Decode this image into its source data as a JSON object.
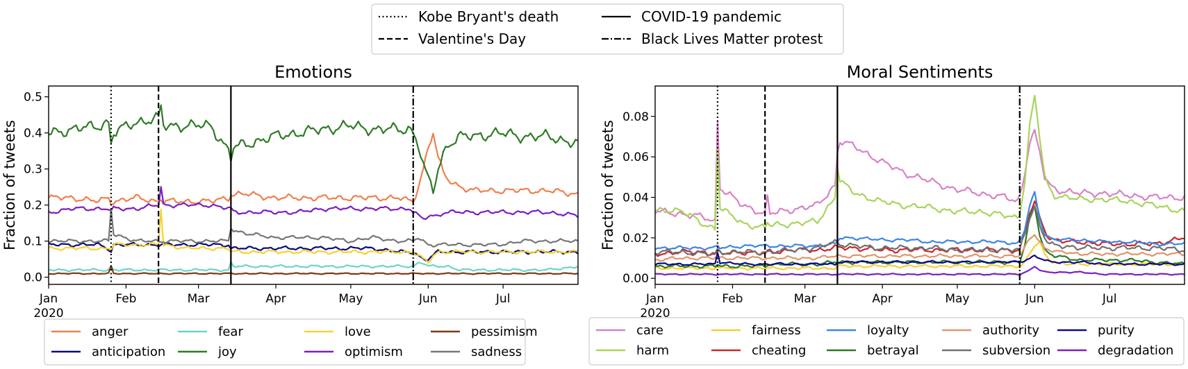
{
  "event_legend": [
    {
      "label": "Kobe Bryant's death",
      "dash": "dotted"
    },
    {
      "label": "COVID-19 pandemic",
      "dash": "solid"
    },
    {
      "label": "Valentine's Day",
      "dash": "dashed"
    },
    {
      "label": "Black Lives Matter protest",
      "dash": "dashdot"
    }
  ],
  "chart_data": [
    {
      "type": "line",
      "title": "Emotions",
      "xlabel": "",
      "ylabel": "Fraction of tweets",
      "xlim": [
        0,
        212
      ],
      "ylim": [
        -0.02,
        0.53
      ],
      "yticks": [
        {
          "value": 0.0,
          "label": "0.0"
        },
        {
          "value": 0.1,
          "label": "0.1"
        },
        {
          "value": 0.2,
          "label": "0.2"
        },
        {
          "value": 0.3,
          "label": "0.3"
        },
        {
          "value": 0.4,
          "label": "0.4"
        },
        {
          "value": 0.5,
          "label": "0.5"
        }
      ],
      "xticks": [
        {
          "day": 0,
          "label": "Jan",
          "sublabel": "2020"
        },
        {
          "day": 31,
          "label": "Feb"
        },
        {
          "day": 60,
          "label": "Mar"
        },
        {
          "day": 91,
          "label": "Apr"
        },
        {
          "day": 121,
          "label": "May"
        },
        {
          "day": 152,
          "label": "Jun"
        },
        {
          "day": 182,
          "label": "Jul"
        }
      ],
      "events": [
        {
          "day": 25,
          "dash": "dotted"
        },
        {
          "day": 44,
          "dash": "dashed"
        },
        {
          "day": 73,
          "dash": "solid"
        },
        {
          "day": 146,
          "dash": "dashdot"
        }
      ],
      "x_unit": "days since 2020-01-01",
      "keypoint_days": [
        0,
        10,
        20,
        24,
        25,
        26,
        35,
        44,
        45,
        46,
        55,
        65,
        72,
        73,
        74,
        80,
        90,
        100,
        110,
        120,
        130,
        140,
        145,
        146,
        148,
        150,
        152,
        154,
        156,
        158,
        160,
        165,
        170,
        180,
        190,
        200,
        212
      ],
      "legend_cols": 4,
      "series": [
        {
          "name": "anger",
          "color": "#f07f4d",
          "amp": 0.01,
          "values": [
            0.22,
            0.22,
            0.21,
            0.22,
            0.21,
            0.21,
            0.22,
            0.21,
            0.22,
            0.21,
            0.21,
            0.21,
            0.22,
            0.23,
            0.23,
            0.23,
            0.22,
            0.22,
            0.22,
            0.22,
            0.22,
            0.22,
            0.21,
            0.21,
            0.25,
            0.3,
            0.36,
            0.4,
            0.33,
            0.29,
            0.27,
            0.25,
            0.24,
            0.24,
            0.24,
            0.24,
            0.23
          ]
        },
        {
          "name": "anticipation",
          "color": "#0a0a7a",
          "amp": 0.006,
          "values": [
            0.09,
            0.09,
            0.09,
            0.08,
            0.07,
            0.09,
            0.09,
            0.09,
            0.09,
            0.09,
            0.09,
            0.09,
            0.09,
            0.08,
            0.08,
            0.08,
            0.08,
            0.08,
            0.08,
            0.08,
            0.08,
            0.07,
            0.07,
            0.07,
            0.06,
            0.05,
            0.05,
            0.06,
            0.07,
            0.07,
            0.07,
            0.07,
            0.07,
            0.07,
            0.07,
            0.07,
            0.07
          ]
        },
        {
          "name": "fear",
          "color": "#6cd4cb",
          "amp": 0.004,
          "values": [
            0.02,
            0.02,
            0.02,
            0.02,
            0.03,
            0.02,
            0.02,
            0.02,
            0.02,
            0.02,
            0.02,
            0.02,
            0.02,
            0.04,
            0.03,
            0.03,
            0.03,
            0.03,
            0.03,
            0.03,
            0.03,
            0.03,
            0.03,
            0.03,
            0.04,
            0.04,
            0.03,
            0.03,
            0.03,
            0.03,
            0.03,
            0.02,
            0.02,
            0.02,
            0.02,
            0.02,
            0.03
          ]
        },
        {
          "name": "joy",
          "color": "#2f7a25",
          "amp": 0.018,
          "values": [
            0.4,
            0.41,
            0.42,
            0.43,
            0.37,
            0.4,
            0.43,
            0.44,
            0.47,
            0.42,
            0.42,
            0.42,
            0.35,
            0.33,
            0.36,
            0.37,
            0.39,
            0.4,
            0.41,
            0.42,
            0.41,
            0.41,
            0.41,
            0.4,
            0.37,
            0.31,
            0.27,
            0.24,
            0.3,
            0.34,
            0.37,
            0.39,
            0.39,
            0.4,
            0.39,
            0.39,
            0.37
          ]
        },
        {
          "name": "love",
          "color": "#f5d233",
          "amp": 0.006,
          "values": [
            0.08,
            0.08,
            0.08,
            0.08,
            0.08,
            0.09,
            0.09,
            0.09,
            0.19,
            0.09,
            0.08,
            0.08,
            0.08,
            0.07,
            0.07,
            0.07,
            0.07,
            0.07,
            0.07,
            0.07,
            0.07,
            0.07,
            0.07,
            0.07,
            0.06,
            0.05,
            0.04,
            0.06,
            0.07,
            0.07,
            0.07,
            0.07,
            0.07,
            0.07,
            0.07,
            0.07,
            0.07
          ]
        },
        {
          "name": "optimism",
          "color": "#7b1fc0",
          "amp": 0.007,
          "values": [
            0.18,
            0.19,
            0.19,
            0.19,
            0.18,
            0.19,
            0.19,
            0.2,
            0.25,
            0.2,
            0.2,
            0.2,
            0.19,
            0.19,
            0.18,
            0.18,
            0.18,
            0.18,
            0.19,
            0.19,
            0.19,
            0.19,
            0.19,
            0.18,
            0.17,
            0.16,
            0.17,
            0.17,
            0.17,
            0.18,
            0.18,
            0.18,
            0.18,
            0.18,
            0.18,
            0.18,
            0.17
          ]
        },
        {
          "name": "pessimism",
          "color": "#7a3a12",
          "amp": 0.002,
          "values": [
            0.01,
            0.01,
            0.01,
            0.01,
            0.03,
            0.01,
            0.01,
            0.01,
            0.01,
            0.01,
            0.01,
            0.01,
            0.01,
            0.01,
            0.01,
            0.01,
            0.01,
            0.01,
            0.01,
            0.01,
            0.01,
            0.01,
            0.01,
            0.01,
            0.01,
            0.01,
            0.01,
            0.01,
            0.01,
            0.01,
            0.01,
            0.01,
            0.01,
            0.01,
            0.01,
            0.01,
            0.01
          ]
        },
        {
          "name": "sadness",
          "color": "#767676",
          "amp": 0.006,
          "values": [
            0.1,
            0.1,
            0.1,
            0.1,
            0.19,
            0.12,
            0.1,
            0.1,
            0.1,
            0.1,
            0.1,
            0.1,
            0.1,
            0.14,
            0.13,
            0.12,
            0.11,
            0.11,
            0.11,
            0.1,
            0.11,
            0.1,
            0.1,
            0.1,
            0.11,
            0.1,
            0.09,
            0.09,
            0.09,
            0.09,
            0.09,
            0.09,
            0.09,
            0.09,
            0.1,
            0.1,
            0.1
          ]
        }
      ]
    },
    {
      "type": "line",
      "title": "Moral Sentiments",
      "xlabel": "",
      "ylabel": "Fraction of tweets",
      "xlim": [
        0,
        212
      ],
      "ylim": [
        -0.003,
        0.095
      ],
      "yticks": [
        {
          "value": 0.0,
          "label": "0.00"
        },
        {
          "value": 0.02,
          "label": "0.02"
        },
        {
          "value": 0.04,
          "label": "0.04"
        },
        {
          "value": 0.06,
          "label": "0.06"
        },
        {
          "value": 0.08,
          "label": "0.08"
        }
      ],
      "xticks": [
        {
          "day": 0,
          "label": "Jan",
          "sublabel": "2020"
        },
        {
          "day": 31,
          "label": "Feb"
        },
        {
          "day": 60,
          "label": "Mar"
        },
        {
          "day": 91,
          "label": "Apr"
        },
        {
          "day": 121,
          "label": "May"
        },
        {
          "day": 152,
          "label": "Jun"
        },
        {
          "day": 182,
          "label": "Jul"
        }
      ],
      "events": [
        {
          "day": 25,
          "dash": "dotted"
        },
        {
          "day": 44,
          "dash": "dashed"
        },
        {
          "day": 73,
          "dash": "solid"
        },
        {
          "day": 146,
          "dash": "dashdot"
        }
      ],
      "x_unit": "days since 2020-01-01",
      "keypoint_days": [
        0,
        10,
        20,
        24,
        25,
        26,
        35,
        44,
        45,
        46,
        55,
        65,
        72,
        73,
        74,
        80,
        90,
        100,
        110,
        120,
        130,
        140,
        145,
        146,
        148,
        150,
        152,
        154,
        156,
        158,
        160,
        165,
        170,
        180,
        190,
        200,
        212
      ],
      "legend_cols": 5,
      "series": [
        {
          "name": "care",
          "color": "#d882c4",
          "amp": 0.002,
          "values": [
            0.033,
            0.032,
            0.03,
            0.028,
            0.078,
            0.045,
            0.036,
            0.032,
            0.04,
            0.032,
            0.034,
            0.036,
            0.046,
            0.062,
            0.068,
            0.065,
            0.058,
            0.052,
            0.048,
            0.044,
            0.042,
            0.04,
            0.038,
            0.04,
            0.052,
            0.068,
            0.072,
            0.062,
            0.05,
            0.046,
            0.044,
            0.043,
            0.042,
            0.042,
            0.041,
            0.04,
            0.04
          ]
        },
        {
          "name": "harm",
          "color": "#a8d45a",
          "amp": 0.0018,
          "values": [
            0.033,
            0.034,
            0.026,
            0.025,
            0.065,
            0.035,
            0.027,
            0.025,
            0.028,
            0.026,
            0.027,
            0.028,
            0.04,
            0.056,
            0.048,
            0.042,
            0.038,
            0.036,
            0.035,
            0.033,
            0.033,
            0.031,
            0.03,
            0.032,
            0.048,
            0.075,
            0.09,
            0.07,
            0.05,
            0.044,
            0.041,
            0.04,
            0.039,
            0.039,
            0.038,
            0.036,
            0.033
          ]
        },
        {
          "name": "fairness",
          "color": "#f6d02f",
          "amp": 0.0008,
          "values": [
            0.005,
            0.005,
            0.005,
            0.005,
            0.006,
            0.005,
            0.005,
            0.005,
            0.005,
            0.005,
            0.005,
            0.005,
            0.005,
            0.006,
            0.006,
            0.006,
            0.006,
            0.006,
            0.006,
            0.006,
            0.006,
            0.006,
            0.006,
            0.006,
            0.008,
            0.012,
            0.016,
            0.018,
            0.012,
            0.009,
            0.008,
            0.007,
            0.007,
            0.007,
            0.007,
            0.007,
            0.007
          ]
        },
        {
          "name": "cheating",
          "color": "#c9282d",
          "amp": 0.0015,
          "values": [
            0.012,
            0.013,
            0.013,
            0.012,
            0.013,
            0.012,
            0.013,
            0.012,
            0.013,
            0.013,
            0.014,
            0.014,
            0.015,
            0.015,
            0.015,
            0.015,
            0.014,
            0.014,
            0.014,
            0.014,
            0.014,
            0.014,
            0.014,
            0.014,
            0.022,
            0.032,
            0.038,
            0.03,
            0.024,
            0.02,
            0.019,
            0.018,
            0.018,
            0.017,
            0.017,
            0.017,
            0.02
          ]
        },
        {
          "name": "loyalty",
          "color": "#3c85e6",
          "amp": 0.001,
          "values": [
            0.015,
            0.015,
            0.015,
            0.015,
            0.016,
            0.015,
            0.016,
            0.016,
            0.016,
            0.016,
            0.016,
            0.016,
            0.017,
            0.018,
            0.02,
            0.02,
            0.019,
            0.019,
            0.018,
            0.018,
            0.018,
            0.018,
            0.017,
            0.018,
            0.024,
            0.036,
            0.042,
            0.03,
            0.022,
            0.02,
            0.019,
            0.019,
            0.019,
            0.018,
            0.018,
            0.017,
            0.017
          ]
        },
        {
          "name": "betrayal",
          "color": "#2a7a22",
          "amp": 0.001,
          "values": [
            0.006,
            0.006,
            0.006,
            0.006,
            0.007,
            0.006,
            0.006,
            0.006,
            0.007,
            0.007,
            0.007,
            0.007,
            0.008,
            0.008,
            0.008,
            0.008,
            0.008,
            0.008,
            0.008,
            0.008,
            0.008,
            0.008,
            0.008,
            0.008,
            0.016,
            0.03,
            0.036,
            0.022,
            0.014,
            0.012,
            0.011,
            0.01,
            0.009,
            0.009,
            0.009,
            0.008,
            0.007
          ]
        },
        {
          "name": "authority",
          "color": "#e0956a",
          "amp": 0.001,
          "values": [
            0.009,
            0.01,
            0.01,
            0.01,
            0.011,
            0.01,
            0.01,
            0.01,
            0.01,
            0.01,
            0.01,
            0.01,
            0.011,
            0.011,
            0.011,
            0.011,
            0.011,
            0.011,
            0.011,
            0.011,
            0.011,
            0.011,
            0.011,
            0.011,
            0.015,
            0.02,
            0.022,
            0.018,
            0.015,
            0.014,
            0.013,
            0.013,
            0.012,
            0.012,
            0.012,
            0.012,
            0.012
          ]
        },
        {
          "name": "subversion",
          "color": "#707070",
          "amp": 0.0015,
          "values": [
            0.013,
            0.013,
            0.012,
            0.012,
            0.014,
            0.013,
            0.013,
            0.013,
            0.013,
            0.013,
            0.014,
            0.015,
            0.018,
            0.018,
            0.017,
            0.016,
            0.015,
            0.015,
            0.015,
            0.014,
            0.014,
            0.014,
            0.014,
            0.014,
            0.022,
            0.03,
            0.036,
            0.026,
            0.02,
            0.017,
            0.016,
            0.016,
            0.015,
            0.015,
            0.015,
            0.015,
            0.014
          ]
        },
        {
          "name": "purity",
          "color": "#0a0a8a",
          "amp": 0.0007,
          "values": [
            0.007,
            0.007,
            0.007,
            0.007,
            0.013,
            0.008,
            0.007,
            0.007,
            0.007,
            0.007,
            0.007,
            0.007,
            0.007,
            0.008,
            0.008,
            0.008,
            0.008,
            0.008,
            0.008,
            0.008,
            0.008,
            0.008,
            0.008,
            0.008,
            0.009,
            0.01,
            0.011,
            0.01,
            0.009,
            0.008,
            0.008,
            0.008,
            0.008,
            0.007,
            0.007,
            0.007,
            0.007
          ]
        },
        {
          "name": "degradation",
          "color": "#7b1fc0",
          "amp": 0.0004,
          "values": [
            0.002,
            0.002,
            0.002,
            0.002,
            0.002,
            0.002,
            0.002,
            0.002,
            0.002,
            0.002,
            0.002,
            0.002,
            0.002,
            0.002,
            0.002,
            0.002,
            0.002,
            0.002,
            0.002,
            0.002,
            0.002,
            0.002,
            0.002,
            0.002,
            0.003,
            0.004,
            0.006,
            0.004,
            0.003,
            0.003,
            0.003,
            0.003,
            0.003,
            0.002,
            0.002,
            0.002,
            0.002
          ]
        }
      ]
    }
  ]
}
